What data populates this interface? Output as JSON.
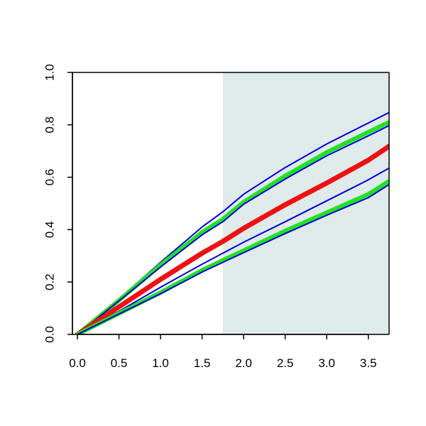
{
  "chart_data": {
    "type": "line",
    "title": "",
    "xlabel": "",
    "ylabel": "",
    "xlim": [
      -0.06,
      3.75
    ],
    "ylim": [
      0,
      1
    ],
    "xticks": [
      "0.0",
      "0.5",
      "1.0",
      "1.5",
      "2.0",
      "2.5",
      "3.0",
      "3.5"
    ],
    "yticks": [
      "0.0",
      "0.2",
      "0.4",
      "0.6",
      "0.8",
      "1.0"
    ],
    "shaded_region": {
      "x": [
        1.75,
        3.75
      ],
      "color": "#dfeaea"
    },
    "grid": false,
    "series": [
      {
        "color": "#0000dd",
        "width": 2,
        "x": [
          0,
          0.5,
          1,
          1.5,
          1.75,
          2,
          2.5,
          3,
          3.5,
          3.75
        ],
        "y": [
          0,
          0.135,
          0.275,
          0.41,
          0.468,
          0.535,
          0.637,
          0.727,
          0.807,
          0.847
        ]
      },
      {
        "color": "#22e022",
        "width": 6,
        "x": [
          0,
          0.5,
          1,
          1.5,
          1.75,
          2,
          2.5,
          3,
          3.5,
          3.75
        ],
        "y": [
          0,
          0.13,
          0.265,
          0.39,
          0.44,
          0.505,
          0.605,
          0.695,
          0.772,
          0.81
        ]
      },
      {
        "color": "#0000dd",
        "width": 2,
        "x": [
          0,
          0.5,
          1,
          1.5,
          1.75,
          2,
          2.5,
          3,
          3.5,
          3.75
        ],
        "y": [
          0,
          0.128,
          0.257,
          0.38,
          0.43,
          0.497,
          0.593,
          0.682,
          0.758,
          0.797
        ]
      },
      {
        "color": "#ee1111",
        "width": 7,
        "x": [
          0,
          0.5,
          1,
          1.5,
          1.75,
          2,
          2.5,
          3,
          3.5,
          3.75
        ],
        "y": [
          0,
          0.105,
          0.21,
          0.31,
          0.355,
          0.405,
          0.495,
          0.578,
          0.665,
          0.718
        ]
      },
      {
        "color": "#0000dd",
        "width": 2,
        "x": [
          0,
          0.5,
          1,
          1.5,
          1.75,
          2,
          2.5,
          3,
          3.5,
          3.75
        ],
        "y": [
          0,
          0.088,
          0.18,
          0.268,
          0.31,
          0.352,
          0.43,
          0.51,
          0.59,
          0.635
        ]
      },
      {
        "color": "#22e022",
        "width": 6,
        "x": [
          0,
          0.5,
          1,
          1.5,
          1.75,
          2,
          2.5,
          3,
          3.5,
          3.75
        ],
        "y": [
          0,
          0.08,
          0.16,
          0.245,
          0.283,
          0.32,
          0.395,
          0.465,
          0.535,
          0.585
        ]
      },
      {
        "color": "#0000dd",
        "width": 2,
        "x": [
          0,
          0.5,
          1,
          1.5,
          1.75,
          2,
          2.5,
          3,
          3.5,
          3.75
        ],
        "y": [
          0,
          0.078,
          0.155,
          0.238,
          0.275,
          0.312,
          0.385,
          0.455,
          0.522,
          0.572
        ]
      }
    ]
  }
}
